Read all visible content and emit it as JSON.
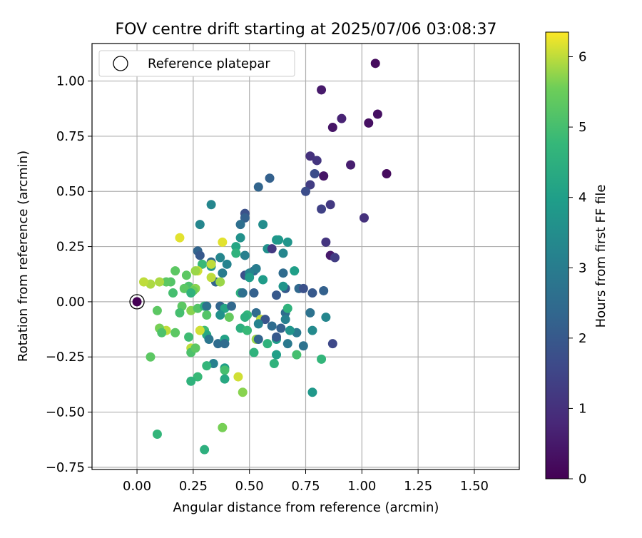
{
  "chart_data": {
    "type": "scatter",
    "title": "FOV centre drift starting at 2025/07/06 03:08:37",
    "xlabel": "Angular distance from reference (arcmin)",
    "ylabel": "Rotation from reference (arcmin)",
    "xlim": [
      -0.2,
      1.7
    ],
    "ylim": [
      -0.76,
      1.17
    ],
    "x_ticks": [
      0.0,
      0.25,
      0.5,
      0.75,
      1.0,
      1.25,
      1.5
    ],
    "x_tick_labels": [
      "0.00",
      "0.25",
      "0.50",
      "0.75",
      "1.00",
      "1.25",
      "1.50"
    ],
    "y_ticks": [
      -0.75,
      -0.5,
      -0.25,
      0.0,
      0.25,
      0.5,
      0.75,
      1.0
    ],
    "y_tick_labels": [
      "−0.75",
      "−0.50",
      "−0.25",
      "0.00",
      "0.25",
      "0.50",
      "0.75",
      "1.00"
    ],
    "grid": true,
    "legend": {
      "label": "Reference platepar",
      "placement": "top-left"
    },
    "reference_point": {
      "x": 0.0,
      "y": 0.0
    },
    "colorbar": {
      "label": "Hours from first FF file",
      "min": 0,
      "max": 6.35,
      "ticks": [
        0,
        1,
        2,
        3,
        4,
        5,
        6
      ],
      "colormap": "viridis"
    },
    "points": [
      {
        "x": 1.06,
        "y": 1.08,
        "c": 0.2
      },
      {
        "x": 0.82,
        "y": 0.96,
        "c": 0.5
      },
      {
        "x": 0.91,
        "y": 0.83,
        "c": 0.7
      },
      {
        "x": 1.07,
        "y": 0.85,
        "c": 0.3
      },
      {
        "x": 0.87,
        "y": 0.79,
        "c": 0.4
      },
      {
        "x": 1.03,
        "y": 0.81,
        "c": 0.3
      },
      {
        "x": 0.77,
        "y": 0.66,
        "c": 1.0
      },
      {
        "x": 0.8,
        "y": 0.64,
        "c": 1.1
      },
      {
        "x": 0.95,
        "y": 0.62,
        "c": 0.6
      },
      {
        "x": 1.11,
        "y": 0.58,
        "c": 0.2
      },
      {
        "x": 0.79,
        "y": 0.58,
        "c": 1.7
      },
      {
        "x": 0.83,
        "y": 0.57,
        "c": 0.4
      },
      {
        "x": 0.59,
        "y": 0.56,
        "c": 2.2
      },
      {
        "x": 0.77,
        "y": 0.53,
        "c": 1.3
      },
      {
        "x": 0.54,
        "y": 0.52,
        "c": 2.3
      },
      {
        "x": 0.75,
        "y": 0.5,
        "c": 1.7
      },
      {
        "x": 0.86,
        "y": 0.44,
        "c": 1.2
      },
      {
        "x": 0.82,
        "y": 0.42,
        "c": 1.4
      },
      {
        "x": 0.33,
        "y": 0.44,
        "c": 3.3
      },
      {
        "x": 0.48,
        "y": 0.4,
        "c": 1.8
      },
      {
        "x": 1.01,
        "y": 0.38,
        "c": 1.0
      },
      {
        "x": 0.48,
        "y": 0.38,
        "c": 2.2
      },
      {
        "x": 0.46,
        "y": 0.35,
        "c": 2.6
      },
      {
        "x": 0.56,
        "y": 0.35,
        "c": 3.5
      },
      {
        "x": 0.28,
        "y": 0.35,
        "c": 3.3
      },
      {
        "x": 0.46,
        "y": 0.29,
        "c": 3.6
      },
      {
        "x": 0.62,
        "y": 0.28,
        "c": 3.8
      },
      {
        "x": 0.63,
        "y": 0.28,
        "c": 3.8
      },
      {
        "x": 0.67,
        "y": 0.27,
        "c": 3.7
      },
      {
        "x": 0.84,
        "y": 0.27,
        "c": 1.1
      },
      {
        "x": 0.58,
        "y": 0.24,
        "c": 3.6
      },
      {
        "x": 0.44,
        "y": 0.25,
        "c": 4.2
      },
      {
        "x": 0.27,
        "y": 0.23,
        "c": 2.3
      },
      {
        "x": 0.6,
        "y": 0.24,
        "c": 1.2
      },
      {
        "x": 0.44,
        "y": 0.22,
        "c": 4.6
      },
      {
        "x": 0.86,
        "y": 0.21,
        "c": 0.5
      },
      {
        "x": 0.28,
        "y": 0.21,
        "c": 2.0
      },
      {
        "x": 0.48,
        "y": 0.21,
        "c": 3.1
      },
      {
        "x": 0.65,
        "y": 0.22,
        "c": 3.3
      },
      {
        "x": 0.88,
        "y": 0.2,
        "c": 1.3
      },
      {
        "x": 0.37,
        "y": 0.2,
        "c": 3.3
      },
      {
        "x": 0.33,
        "y": 0.18,
        "c": 2.4
      },
      {
        "x": 0.4,
        "y": 0.17,
        "c": 3.2
      },
      {
        "x": 0.29,
        "y": 0.17,
        "c": 4.8
      },
      {
        "x": 0.33,
        "y": 0.16,
        "c": 3.7
      },
      {
        "x": 0.52,
        "y": 0.14,
        "c": 2.3
      },
      {
        "x": 0.53,
        "y": 0.15,
        "c": 3.0
      },
      {
        "x": 0.7,
        "y": 0.14,
        "c": 4.0
      },
      {
        "x": 0.48,
        "y": 0.12,
        "c": 1.8
      },
      {
        "x": 0.5,
        "y": 0.13,
        "c": 3.2
      },
      {
        "x": 0.65,
        "y": 0.13,
        "c": 2.5
      },
      {
        "x": 0.38,
        "y": 0.13,
        "c": 3.0
      },
      {
        "x": 0.22,
        "y": 0.12,
        "c": 5.3
      },
      {
        "x": 0.5,
        "y": 0.11,
        "c": 3.9
      },
      {
        "x": 0.56,
        "y": 0.1,
        "c": 3.9
      },
      {
        "x": 0.35,
        "y": 0.09,
        "c": 2.3
      },
      {
        "x": 0.37,
        "y": 0.09,
        "c": 5.8
      },
      {
        "x": 0.15,
        "y": 0.09,
        "c": 5.2
      },
      {
        "x": 0.13,
        "y": 0.09,
        "c": 5.3
      },
      {
        "x": 0.72,
        "y": 0.06,
        "c": 2.4
      },
      {
        "x": 0.74,
        "y": 0.06,
        "c": 1.8
      },
      {
        "x": 0.66,
        "y": 0.06,
        "c": 2.0
      },
      {
        "x": 0.65,
        "y": 0.07,
        "c": 3.7
      },
      {
        "x": 0.23,
        "y": 0.07,
        "c": 5.1
      },
      {
        "x": 0.26,
        "y": 0.06,
        "c": 5.7
      },
      {
        "x": 0.25,
        "y": 0.05,
        "c": 5.5
      },
      {
        "x": 0.21,
        "y": 0.06,
        "c": 5.3
      },
      {
        "x": 0.83,
        "y": 0.05,
        "c": 2.2
      },
      {
        "x": 0.46,
        "y": 0.04,
        "c": 4.5
      },
      {
        "x": 0.47,
        "y": 0.04,
        "c": 2.6
      },
      {
        "x": 0.52,
        "y": 0.04,
        "c": 2.2
      },
      {
        "x": 0.62,
        "y": 0.03,
        "c": 2.0
      },
      {
        "x": 0.78,
        "y": 0.04,
        "c": 2.0
      },
      {
        "x": 0.16,
        "y": 0.04,
        "c": 5.0
      },
      {
        "x": 0.24,
        "y": 0.04,
        "c": 4.6
      },
      {
        "x": 0.06,
        "y": 0.08,
        "c": 5.9
      },
      {
        "x": 0.03,
        "y": 0.09,
        "c": 6.0
      },
      {
        "x": 0.1,
        "y": 0.09,
        "c": 5.9
      },
      {
        "x": 0.27,
        "y": 0.14,
        "c": 6.1
      },
      {
        "x": 0.33,
        "y": 0.11,
        "c": 6.0
      },
      {
        "x": 0.38,
        "y": 0.27,
        "c": 6.2
      },
      {
        "x": 0.19,
        "y": 0.29,
        "c": 6.2
      },
      {
        "x": 0.17,
        "y": 0.14,
        "c": 5.3
      },
      {
        "x": 0.26,
        "y": 0.14,
        "c": 5.8
      },
      {
        "x": 0.33,
        "y": 0.17,
        "c": 6.0
      },
      {
        "x": 0.2,
        "y": -0.02,
        "c": 5.3
      },
      {
        "x": 0.19,
        "y": -0.05,
        "c": 5.0
      },
      {
        "x": 0.24,
        "y": -0.04,
        "c": 5.7
      },
      {
        "x": 0.27,
        "y": -0.03,
        "c": 5.2
      },
      {
        "x": 0.3,
        "y": -0.02,
        "c": 4.6
      },
      {
        "x": 0.31,
        "y": -0.02,
        "c": 2.7
      },
      {
        "x": 0.37,
        "y": -0.02,
        "c": 2.3
      },
      {
        "x": 0.39,
        "y": -0.03,
        "c": 4.2
      },
      {
        "x": 0.42,
        "y": -0.02,
        "c": 2.4
      },
      {
        "x": 0.31,
        "y": -0.06,
        "c": 5.2
      },
      {
        "x": 0.37,
        "y": -0.06,
        "c": 3.6
      },
      {
        "x": 0.41,
        "y": -0.07,
        "c": 5.4
      },
      {
        "x": 0.49,
        "y": -0.06,
        "c": 4.7
      },
      {
        "x": 0.48,
        "y": -0.07,
        "c": 4.5
      },
      {
        "x": 0.53,
        "y": -0.05,
        "c": 2.5
      },
      {
        "x": 0.55,
        "y": -0.08,
        "c": 6.0
      },
      {
        "x": 0.57,
        "y": -0.08,
        "c": 1.9
      },
      {
        "x": 0.66,
        "y": -0.05,
        "c": 2.5
      },
      {
        "x": 0.67,
        "y": -0.03,
        "c": 4.6
      },
      {
        "x": 0.77,
        "y": -0.05,
        "c": 2.7
      },
      {
        "x": 0.84,
        "y": -0.07,
        "c": 3.3
      },
      {
        "x": 0.66,
        "y": -0.08,
        "c": 3.1
      },
      {
        "x": 0.54,
        "y": -0.1,
        "c": 3.2
      },
      {
        "x": 0.6,
        "y": -0.11,
        "c": 2.5
      },
      {
        "x": 0.64,
        "y": -0.12,
        "c": 2.2
      },
      {
        "x": 0.71,
        "y": -0.14,
        "c": 2.9
      },
      {
        "x": 0.68,
        "y": -0.13,
        "c": 3.7
      },
      {
        "x": 0.78,
        "y": -0.13,
        "c": 3.4
      },
      {
        "x": 0.46,
        "y": -0.12,
        "c": 4.5
      },
      {
        "x": 0.49,
        "y": -0.13,
        "c": 4.8
      },
      {
        "x": 0.3,
        "y": -0.13,
        "c": 4.9
      },
      {
        "x": 0.31,
        "y": -0.15,
        "c": 4.3
      },
      {
        "x": 0.17,
        "y": -0.14,
        "c": 5.3
      },
      {
        "x": 0.13,
        "y": -0.13,
        "c": 6.0
      },
      {
        "x": 0.1,
        "y": -0.12,
        "c": 5.6
      },
      {
        "x": 0.11,
        "y": -0.14,
        "c": 5.1
      },
      {
        "x": 0.09,
        "y": -0.04,
        "c": 5.3
      },
      {
        "x": 0.23,
        "y": -0.16,
        "c": 4.9
      },
      {
        "x": 0.28,
        "y": -0.13,
        "c": 6.1
      },
      {
        "x": 0.32,
        "y": -0.17,
        "c": 2.8
      },
      {
        "x": 0.36,
        "y": -0.19,
        "c": 2.5
      },
      {
        "x": 0.39,
        "y": -0.17,
        "c": 4.1
      },
      {
        "x": 0.39,
        "y": -0.19,
        "c": 2.5
      },
      {
        "x": 0.53,
        "y": -0.17,
        "c": 5.8
      },
      {
        "x": 0.54,
        "y": -0.17,
        "c": 2.3
      },
      {
        "x": 0.58,
        "y": -0.19,
        "c": 4.6
      },
      {
        "x": 0.62,
        "y": -0.17,
        "c": 3.9
      },
      {
        "x": 0.62,
        "y": -0.16,
        "c": 2.0
      },
      {
        "x": 0.67,
        "y": -0.19,
        "c": 2.9
      },
      {
        "x": 0.74,
        "y": -0.2,
        "c": 2.7
      },
      {
        "x": 0.87,
        "y": -0.19,
        "c": 1.6
      },
      {
        "x": 0.24,
        "y": -0.21,
        "c": 6.0
      },
      {
        "x": 0.24,
        "y": -0.23,
        "c": 5.1
      },
      {
        "x": 0.26,
        "y": -0.21,
        "c": 5.3
      },
      {
        "x": 0.52,
        "y": -0.23,
        "c": 4.6
      },
      {
        "x": 0.62,
        "y": -0.24,
        "c": 4.0
      },
      {
        "x": 0.71,
        "y": -0.24,
        "c": 5.0
      },
      {
        "x": 0.82,
        "y": -0.26,
        "c": 4.7
      },
      {
        "x": 0.06,
        "y": -0.25,
        "c": 5.3
      },
      {
        "x": 0.61,
        "y": -0.28,
        "c": 4.6
      },
      {
        "x": 0.34,
        "y": -0.28,
        "c": 3.1
      },
      {
        "x": 0.31,
        "y": -0.29,
        "c": 4.7
      },
      {
        "x": 0.39,
        "y": -0.3,
        "c": 4.0
      },
      {
        "x": 0.39,
        "y": -0.31,
        "c": 5.0
      },
      {
        "x": 0.45,
        "y": -0.34,
        "c": 6.1
      },
      {
        "x": 0.27,
        "y": -0.34,
        "c": 4.8
      },
      {
        "x": 0.39,
        "y": -0.35,
        "c": 4.3
      },
      {
        "x": 0.24,
        "y": -0.36,
        "c": 4.6
      },
      {
        "x": 0.78,
        "y": -0.41,
        "c": 3.8
      },
      {
        "x": 0.47,
        "y": -0.41,
        "c": 5.7
      },
      {
        "x": 0.38,
        "y": -0.57,
        "c": 5.6
      },
      {
        "x": 0.09,
        "y": -0.6,
        "c": 4.7
      },
      {
        "x": 0.3,
        "y": -0.67,
        "c": 4.5
      },
      {
        "x": 0.0,
        "y": 0.0,
        "c": 0.0
      }
    ]
  }
}
